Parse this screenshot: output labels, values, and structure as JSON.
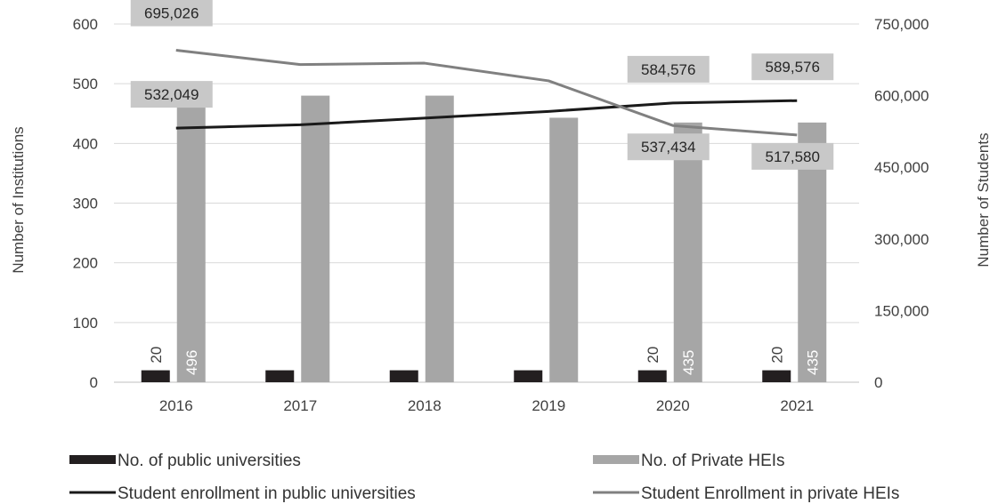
{
  "chart_data": {
    "type": "bar",
    "categories": [
      "2016",
      "2017",
      "2018",
      "2019",
      "2020",
      "2021"
    ],
    "ylabel_left": "Number of Institutions",
    "ylabel_right": "Number  of Students",
    "ylim_left": [
      0,
      600
    ],
    "ylim_right": [
      0,
      750000
    ],
    "yticks_left": [
      "0",
      "100",
      "200",
      "300",
      "400",
      "500",
      "600"
    ],
    "yticks_right": [
      "0",
      "150,000",
      "300,000",
      "450,000",
      "600,000",
      "750,000"
    ],
    "grid": true,
    "legend_position": "bottom",
    "bar_series": [
      {
        "name": "No. of public universities",
        "values": [
          20,
          20,
          20,
          20,
          20,
          20
        ],
        "labels": [
          "20",
          "",
          "",
          "",
          "20",
          "20"
        ],
        "color": "#231f20"
      },
      {
        "name": "No. of Private HEIs",
        "values": [
          496,
          480,
          480,
          443,
          435,
          435
        ],
        "labels": [
          "496",
          "",
          "",
          "",
          "435",
          "435"
        ],
        "color": "#a6a6a6"
      }
    ],
    "line_series": [
      {
        "name": "Student enrollment in public universities",
        "values": [
          532049,
          539000,
          553000,
          567000,
          584576,
          589576
        ],
        "labels": [
          "532,049",
          "",
          "",
          "",
          "584,576",
          "589,576"
        ],
        "color": "#1a1a1a"
      },
      {
        "name": "Student Enrollment in private HEIs",
        "values": [
          695026,
          665000,
          668000,
          631000,
          537434,
          517580
        ],
        "labels": [
          "695,026",
          "",
          "",
          "",
          "537,434",
          "517,580"
        ],
        "color": "#808080"
      }
    ]
  }
}
